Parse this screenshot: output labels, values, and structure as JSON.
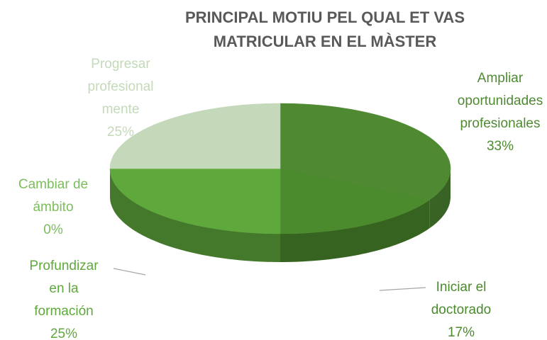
{
  "chart_data": {
    "type": "pie",
    "title": "PRINCIPAL MOTIU PEL QUAL ET VAS MATRICULAR EN EL MÀSTER",
    "categories": [
      "Ampliar oportunidades profesionales",
      "Iniciar el doctorado",
      "Profundizar en la formación",
      "Cambiar de ámbito",
      "Progresar profesional mente"
    ],
    "values": [
      33,
      17,
      25,
      0,
      25
    ],
    "value_labels": [
      "33%",
      "17%",
      "25%",
      "0%",
      "25%"
    ],
    "colors": [
      "#4f8a32",
      "#4b8a2d",
      "#5fa83c",
      "#7cbd5b",
      "#c3d9ba"
    ]
  }
}
